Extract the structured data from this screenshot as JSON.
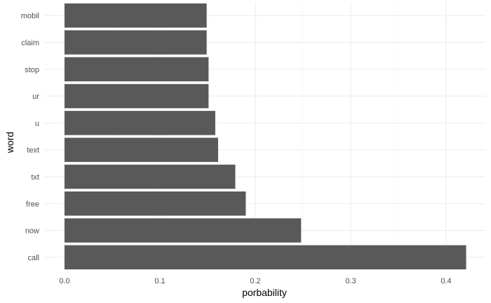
{
  "chart_data": {
    "type": "bar",
    "orientation": "horizontal",
    "title": "",
    "xlabel": "porbability",
    "ylabel": "word",
    "categories": [
      "call",
      "now",
      "free",
      "txt",
      "text",
      "u",
      "ur",
      "stop",
      "claim",
      "mobil"
    ],
    "values": [
      0.421,
      0.248,
      0.19,
      0.179,
      0.161,
      0.158,
      0.151,
      0.151,
      0.149,
      0.149
    ],
    "xlim": [
      0,
      0.44
    ],
    "xticks": [
      "0.0",
      "0.1",
      "0.2",
      "0.3",
      "0.4"
    ],
    "grid": true,
    "bar_color": "#595959"
  }
}
